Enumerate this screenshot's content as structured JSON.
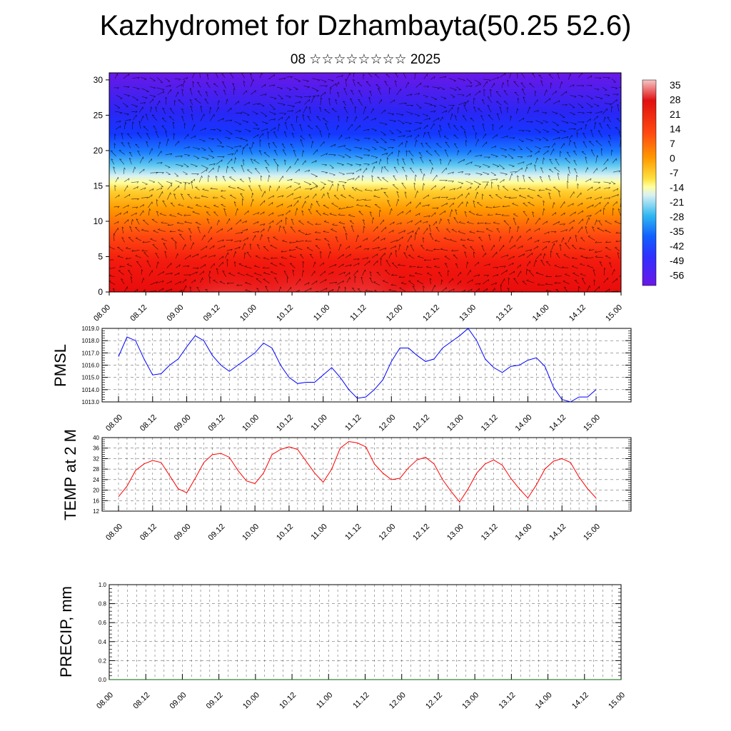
{
  "page": {
    "title": "Kazhydromet for Dzhambayta(50.25 52.6)",
    "subtitle": "08 ☆☆☆☆☆☆☆☆ 2025"
  },
  "chart_data": [
    {
      "type": "heatmap",
      "title": "",
      "xlabel": "",
      "ylabel": "",
      "x_tick_labels": [
        "08.00",
        "08.12",
        "09.00",
        "09.12",
        "10.00",
        "10.12",
        "11.00",
        "11.12",
        "12.00",
        "12.12",
        "13.00",
        "13.12",
        "14.00",
        "14.12",
        "15.00"
      ],
      "y_tick_labels": [
        "0",
        "5",
        "10",
        "15",
        "20",
        "25",
        "30"
      ],
      "ylim": [
        0,
        31
      ],
      "colorbar_labels": [
        "35",
        "28",
        "21",
        "14",
        "7",
        "0",
        "-7",
        "-14",
        "-21",
        "-28",
        "-35",
        "-42",
        "-49",
        "-56"
      ],
      "colorbar_colors": [
        "#f6c6c6",
        "#e01010",
        "#ff4a10",
        "#ff9a00",
        "#ffe040",
        "#ffffa0",
        "#c8eaf0",
        "#30b8f0",
        "#1060ff",
        "#3030ff",
        "#6a18e8"
      ],
      "overlay": "wind vectors"
    },
    {
      "type": "line",
      "ylabel": "PMSL",
      "x_tick_labels": [
        "08.00",
        "08.12",
        "09.00",
        "09.12",
        "10.00",
        "10.12",
        "11.00",
        "11.12",
        "12.00",
        "12.12",
        "13.00",
        "13.12",
        "14.00",
        "14.12",
        "15.00"
      ],
      "y_tick_labels": [
        "1013.0",
        "1014.0",
        "1015.0",
        "1016.0",
        "1017.0",
        "1018.0",
        "1019.0"
      ],
      "ylim": [
        1013.0,
        1019.0
      ],
      "color": "#0000ff",
      "series": [
        {
          "values": [
            1016.7,
            1018.3,
            1018.0,
            1016.5,
            1015.2,
            1015.3,
            1016.0,
            1016.5,
            1017.5,
            1018.4,
            1018.0,
            1016.8,
            1016.0,
            1015.5,
            1016.0,
            1016.5,
            1017.0,
            1017.8,
            1017.4,
            1016.0,
            1015.0,
            1014.5,
            1014.6,
            1014.6,
            1015.2,
            1015.8,
            1015.0,
            1014.0,
            1013.3,
            1013.4,
            1014.0,
            1014.8,
            1016.3,
            1017.4,
            1017.4,
            1016.8,
            1016.3,
            1016.5,
            1017.4,
            1017.9,
            1018.4,
            1019.0,
            1018.0,
            1016.5,
            1015.8,
            1015.4,
            1015.9,
            1016.0,
            1016.4,
            1016.6,
            1015.9,
            1014.2,
            1013.2,
            1013.0,
            1013.4,
            1013.4,
            1014.0
          ]
        }
      ]
    },
    {
      "type": "line",
      "ylabel": "TEMP at 2 M",
      "x_tick_labels": [
        "08.00",
        "08.12",
        "09.00",
        "09.12",
        "10.00",
        "10.12",
        "11.00",
        "11.12",
        "12.00",
        "12.12",
        "13.00",
        "13.12",
        "14.00",
        "14.12",
        "15.00"
      ],
      "y_tick_labels": [
        "12",
        "16",
        "20",
        "24",
        "28",
        "32",
        "36",
        "40"
      ],
      "ylim": [
        12,
        40
      ],
      "color": "#ff0000",
      "series": [
        {
          "values": [
            17.5,
            21.5,
            27.5,
            30.0,
            31.3,
            30.5,
            25.5,
            20.5,
            19.0,
            24.5,
            30.5,
            33.5,
            34.0,
            32.5,
            27.5,
            23.5,
            22.5,
            26.5,
            33.5,
            35.5,
            36.5,
            35.5,
            31.0,
            26.5,
            23.0,
            28.0,
            36.0,
            38.5,
            38.0,
            36.5,
            30.0,
            26.5,
            24.0,
            24.5,
            28.5,
            31.5,
            32.5,
            30.0,
            24.0,
            19.5,
            15.5,
            20.5,
            26.5,
            30.0,
            31.5,
            29.5,
            24.5,
            20.5,
            17.0,
            22.0,
            28.0,
            31.0,
            32.0,
            30.5,
            25.0,
            20.5,
            17.0
          ]
        }
      ]
    },
    {
      "type": "line",
      "ylabel": "PRECIP, mm",
      "x_tick_labels": [
        "08.00",
        "08.12",
        "09.00",
        "09.12",
        "10.00",
        "10.12",
        "11.00",
        "11.12",
        "12.00",
        "12.12",
        "13.00",
        "13.12",
        "14.00",
        "14.12",
        "15.00"
      ],
      "y_tick_labels": [
        "0.0",
        "0.2",
        "0.4",
        "0.6",
        "0.8",
        "1.0"
      ],
      "ylim": [
        0.0,
        1.0
      ],
      "color": "#006400",
      "series": [
        {
          "values": [
            0,
            0,
            0,
            0,
            0,
            0,
            0,
            0,
            0,
            0,
            0,
            0,
            0,
            0,
            0,
            0,
            0,
            0,
            0,
            0,
            0,
            0,
            0,
            0,
            0,
            0,
            0,
            0,
            0,
            0,
            0,
            0,
            0,
            0,
            0,
            0,
            0,
            0,
            0,
            0,
            0,
            0,
            0,
            0,
            0,
            0,
            0,
            0,
            0,
            0,
            0,
            0,
            0,
            0,
            0,
            0,
            0
          ]
        }
      ]
    }
  ]
}
